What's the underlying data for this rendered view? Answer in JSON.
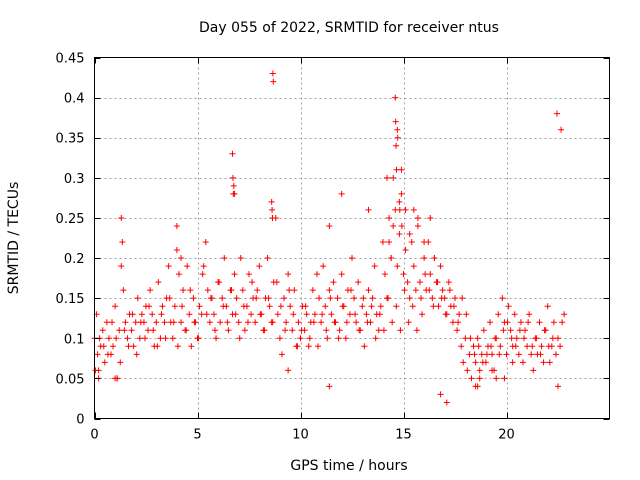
{
  "chart_data": {
    "type": "scatter",
    "title": "Day 055 of 2022, SRMTID for receiver ntus",
    "xlabel": "GPS time / hours",
    "ylabel": "SRMTID / TECUs",
    "xlim": [
      0,
      25
    ],
    "ylim": [
      0,
      0.45
    ],
    "xticks": [
      0,
      5,
      10,
      15,
      20
    ],
    "xtick_labels": [
      "0",
      "5",
      "10",
      "15",
      "20"
    ],
    "yticks": [
      0,
      0.05,
      0.1,
      0.15,
      0.2,
      0.25,
      0.3,
      0.35,
      0.4,
      0.45
    ],
    "ytick_labels": [
      "0",
      "0.05",
      "0.1",
      "0.15",
      "0.2",
      "0.25",
      "0.3",
      "0.35",
      "0.4",
      "0.45"
    ],
    "grid": true,
    "marker": "+",
    "color": "#ff0000",
    "series": [
      {
        "name": "SRMTID",
        "x": [
          0.0,
          0.1,
          0.15,
          0.2,
          0.3,
          0.4,
          0.5,
          0.6,
          0.7,
          0.8,
          0.9,
          1.0,
          1.1,
          1.2,
          1.3,
          1.4,
          1.5,
          1.6,
          1.7,
          1.8,
          1.9,
          2.0,
          2.1,
          2.2,
          2.3,
          2.4,
          2.5,
          2.6,
          2.7,
          2.8,
          2.9,
          3.0,
          3.1,
          3.2,
          3.3,
          3.4,
          3.5,
          3.6,
          3.7,
          3.8,
          3.9,
          4.0,
          4.1,
          4.2,
          4.3,
          4.4,
          4.5,
          4.6,
          4.7,
          4.8,
          4.9,
          5.0,
          5.1,
          5.2,
          5.3,
          5.4,
          5.5,
          5.6,
          5.7,
          5.8,
          5.9,
          6.0,
          6.1,
          6.2,
          6.3,
          6.4,
          6.5,
          6.6,
          6.7,
          6.8,
          6.9,
          7.0,
          7.1,
          7.2,
          7.3,
          7.4,
          7.5,
          7.6,
          7.7,
          7.8,
          7.9,
          8.0,
          8.1,
          8.2,
          8.3,
          8.4,
          8.5,
          8.6,
          8.7,
          8.8,
          8.9,
          9.0,
          9.1,
          9.2,
          9.3,
          9.4,
          9.5,
          9.6,
          9.7,
          9.8,
          9.9,
          10.0,
          10.1,
          10.2,
          10.3,
          10.4,
          10.5,
          10.6,
          10.7,
          10.8,
          10.9,
          11.0,
          11.1,
          11.2,
          11.3,
          11.4,
          11.5,
          11.6,
          11.7,
          11.8,
          11.9,
          12.0,
          12.1,
          12.2,
          12.3,
          12.4,
          12.5,
          12.6,
          12.7,
          12.8,
          12.9,
          13.0,
          13.1,
          13.2,
          13.3,
          13.4,
          13.5,
          13.6,
          13.7,
          13.8,
          13.9,
          14.0,
          14.1,
          14.2,
          14.3,
          14.4,
          14.5,
          14.6,
          14.7,
          14.8,
          14.9,
          15.0,
          15.1,
          15.2,
          15.3,
          15.4,
          15.5,
          15.6,
          15.7,
          15.8,
          15.9,
          16.0,
          16.1,
          16.2,
          16.3,
          16.4,
          16.5,
          16.6,
          16.7,
          16.8,
          16.9,
          17.0,
          17.1,
          17.2,
          17.3,
          17.4,
          17.5,
          17.6,
          17.7,
          17.8,
          17.9,
          18.0,
          18.1,
          18.2,
          18.3,
          18.4,
          18.5,
          18.6,
          18.7,
          18.8,
          18.9,
          19.0,
          19.1,
          19.2,
          19.3,
          19.4,
          19.5,
          19.6,
          19.7,
          19.8,
          19.9,
          20.0,
          20.1,
          20.2,
          20.3,
          20.4,
          20.5,
          20.6,
          20.7,
          20.8,
          20.9,
          21.0,
          21.1,
          21.2,
          21.3,
          21.4,
          21.5,
          21.6,
          21.7,
          21.8,
          21.9,
          22.0,
          22.1,
          22.2,
          22.3,
          22.4,
          22.5,
          22.6,
          22.7,
          22.8,
          0.05,
          0.25,
          0.45,
          0.65,
          0.85,
          1.05,
          1.25,
          1.45,
          1.65,
          1.85,
          2.05,
          2.25,
          2.45,
          2.65,
          2.85,
          3.05,
          3.25,
          3.45,
          3.65,
          3.85,
          4.05,
          4.25,
          4.45,
          4.65,
          4.85,
          5.05,
          5.25,
          5.45,
          5.65,
          5.85,
          6.05,
          6.25,
          6.45,
          6.65,
          6.85,
          7.05,
          7.25,
          7.45,
          7.65,
          7.85,
          8.05,
          8.25,
          8.45,
          8.65,
          8.85,
          9.05,
          9.25,
          9.45,
          9.65,
          9.85,
          10.05,
          10.25,
          10.45,
          10.65,
          10.85,
          11.05,
          11.25,
          11.45,
          11.65,
          11.85,
          12.05,
          12.25,
          12.45,
          12.65,
          12.85,
          13.05,
          13.25,
          13.45,
          13.65,
          13.85,
          14.05,
          14.25,
          14.45,
          14.65,
          14.85,
          15.05,
          15.25,
          15.45,
          15.65,
          15.85,
          16.05,
          16.25,
          16.45,
          16.65,
          16.85,
          17.05,
          17.25,
          17.45,
          17.65,
          17.85,
          18.05,
          18.25,
          18.45,
          18.65,
          18.85,
          19.05,
          19.25,
          19.45,
          19.65,
          19.85,
          20.05,
          20.25,
          20.45,
          20.65,
          20.85,
          21.05,
          21.25,
          21.45,
          21.65,
          21.85,
          22.05,
          22.25,
          22.45,
          22.65,
          6.7,
          6.72,
          6.74,
          6.76,
          6.8,
          8.6,
          8.62,
          8.64,
          8.66,
          8.68,
          14.6,
          14.62,
          14.64,
          14.66,
          14.7,
          14.72,
          14.8,
          14.82,
          14.9,
          14.92,
          15.5,
          16.3,
          4.0,
          4.2,
          1.3,
          1.35,
          11.4,
          12.0,
          13.3,
          14.2,
          14.3,
          14.4,
          14.5,
          15.1,
          15.3,
          15.7,
          16.0,
          16.5,
          16.8,
          17.1,
          18.5,
          18.6,
          18.7,
          19.3,
          19.9,
          20.3,
          1.0,
          1.1,
          0.2,
          9.4,
          11.4,
          19.5,
          22.5
        ],
        "y": [
          0.1,
          0.13,
          0.08,
          0.06,
          0.09,
          0.11,
          0.07,
          0.12,
          0.1,
          0.08,
          0.09,
          0.14,
          0.05,
          0.11,
          0.19,
          0.16,
          0.12,
          0.1,
          0.13,
          0.11,
          0.09,
          0.12,
          0.15,
          0.1,
          0.13,
          0.12,
          0.14,
          0.11,
          0.16,
          0.13,
          0.09,
          0.12,
          0.17,
          0.1,
          0.14,
          0.12,
          0.15,
          0.19,
          0.12,
          0.1,
          0.14,
          0.24,
          0.18,
          0.12,
          0.16,
          0.11,
          0.19,
          0.13,
          0.09,
          0.15,
          0.12,
          0.1,
          0.14,
          0.13,
          0.19,
          0.22,
          0.16,
          0.12,
          0.15,
          0.13,
          0.1,
          0.17,
          0.12,
          0.15,
          0.2,
          0.14,
          0.11,
          0.16,
          0.13,
          0.18,
          0.15,
          0.12,
          0.2,
          0.16,
          0.11,
          0.14,
          0.18,
          0.13,
          0.15,
          0.12,
          0.16,
          0.19,
          0.13,
          0.11,
          0.15,
          0.2,
          0.14,
          0.12,
          0.17,
          0.25,
          0.13,
          0.1,
          0.08,
          0.15,
          0.12,
          0.18,
          0.14,
          0.11,
          0.16,
          0.09,
          0.12,
          0.1,
          0.14,
          0.11,
          0.13,
          0.09,
          0.12,
          0.16,
          0.13,
          0.18,
          0.15,
          0.12,
          0.19,
          0.14,
          0.1,
          0.16,
          0.13,
          0.17,
          0.12,
          0.15,
          0.11,
          0.18,
          0.14,
          0.1,
          0.16,
          0.13,
          0.2,
          0.15,
          0.12,
          0.17,
          0.11,
          0.14,
          0.09,
          0.13,
          0.16,
          0.12,
          0.15,
          0.19,
          0.13,
          0.11,
          0.14,
          0.22,
          0.18,
          0.15,
          0.25,
          0.2,
          0.3,
          0.26,
          0.19,
          0.23,
          0.28,
          0.18,
          0.21,
          0.17,
          0.15,
          0.22,
          0.19,
          0.16,
          0.24,
          0.17,
          0.13,
          0.2,
          0.16,
          0.22,
          0.18,
          0.15,
          0.2,
          0.17,
          0.14,
          0.19,
          0.16,
          0.15,
          0.13,
          0.17,
          0.14,
          0.12,
          0.15,
          0.11,
          0.13,
          0.09,
          0.07,
          0.1,
          0.06,
          0.08,
          0.05,
          0.09,
          0.07,
          0.1,
          0.06,
          0.08,
          0.11,
          0.07,
          0.09,
          0.12,
          0.08,
          0.06,
          0.1,
          0.13,
          0.09,
          0.15,
          0.12,
          0.08,
          0.14,
          0.11,
          0.09,
          0.13,
          0.1,
          0.08,
          0.12,
          0.07,
          0.11,
          0.09,
          0.13,
          0.08,
          0.06,
          0.1,
          0.08,
          0.12,
          0.09,
          0.07,
          0.11,
          0.14,
          0.07,
          0.09,
          0.12,
          0.08,
          0.1,
          0.09,
          0.12,
          0.13,
          0.06,
          0.1,
          0.09,
          0.08,
          0.12,
          0.1,
          0.07,
          0.11,
          0.09,
          0.13,
          0.08,
          0.12,
          0.1,
          0.14,
          0.11,
          0.09,
          0.13,
          0.1,
          0.15,
          0.12,
          0.09,
          0.14,
          0.11,
          0.16,
          0.12,
          0.1,
          0.18,
          0.13,
          0.15,
          0.11,
          0.17,
          0.14,
          0.12,
          0.16,
          0.13,
          0.1,
          0.14,
          0.12,
          0.17,
          0.15,
          0.13,
          0.11,
          0.15,
          0.12,
          0.17,
          0.14,
          0.11,
          0.16,
          0.13,
          0.09,
          0.11,
          0.14,
          0.1,
          0.12,
          0.09,
          0.13,
          0.11,
          0.15,
          0.12,
          0.1,
          0.14,
          0.12,
          0.16,
          0.13,
          0.11,
          0.15,
          0.12,
          0.14,
          0.1,
          0.13,
          0.11,
          0.15,
          0.12,
          0.14,
          0.11,
          0.16,
          0.12,
          0.14,
          0.11,
          0.15,
          0.18,
          0.16,
          0.14,
          0.17,
          0.15,
          0.13,
          0.16,
          0.14,
          0.12,
          0.15,
          0.13,
          0.1,
          0.08,
          0.09,
          0.07,
          0.08,
          0.09,
          0.1,
          0.08,
          0.11,
          0.12,
          0.1,
          0.09,
          0.11,
          0.1,
          0.12,
          0.09,
          0.1,
          0.08,
          0.11,
          0.09,
          0.1,
          0.38,
          0.36,
          0.33,
          0.3,
          0.28,
          0.29,
          0.28,
          0.27,
          0.26,
          0.25,
          0.43,
          0.42,
          0.4,
          0.37,
          0.34,
          0.31,
          0.36,
          0.35,
          0.27,
          0.26,
          0.31,
          0.24,
          0.26,
          0.25,
          0.21,
          0.2,
          0.25,
          0.22,
          0.24,
          0.28,
          0.26,
          0.3,
          0.22,
          0.2,
          0.24,
          0.26,
          0.23,
          0.25,
          0.22,
          0.2,
          0.03,
          0.02,
          0.04,
          0.04,
          0.05,
          0.06,
          0.05,
          0.07,
          0.05,
          0.05,
          0.05,
          0.06,
          0.04,
          0.05,
          0.04
        ]
      }
    ]
  }
}
